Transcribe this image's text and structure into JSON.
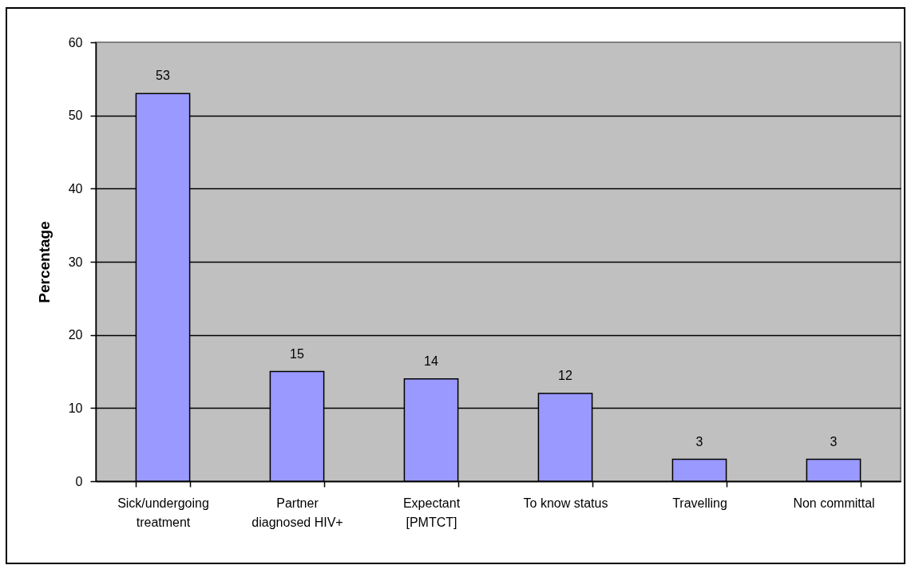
{
  "chart_data": {
    "type": "bar",
    "ylabel": "Percentage",
    "categories": [
      "Sick/undergoing treatment",
      "Partner diagnosed HIV+",
      "Expectant [PMTCT]",
      "To know status",
      "Travelling",
      "Non committal"
    ],
    "values": [
      53,
      15,
      14,
      12,
      3,
      3
    ],
    "color": "#9999ff",
    "ylim": [
      0,
      60
    ],
    "yticks": [
      0,
      10,
      20,
      30,
      40,
      50,
      60
    ],
    "grid": "y",
    "data_labels": true
  }
}
